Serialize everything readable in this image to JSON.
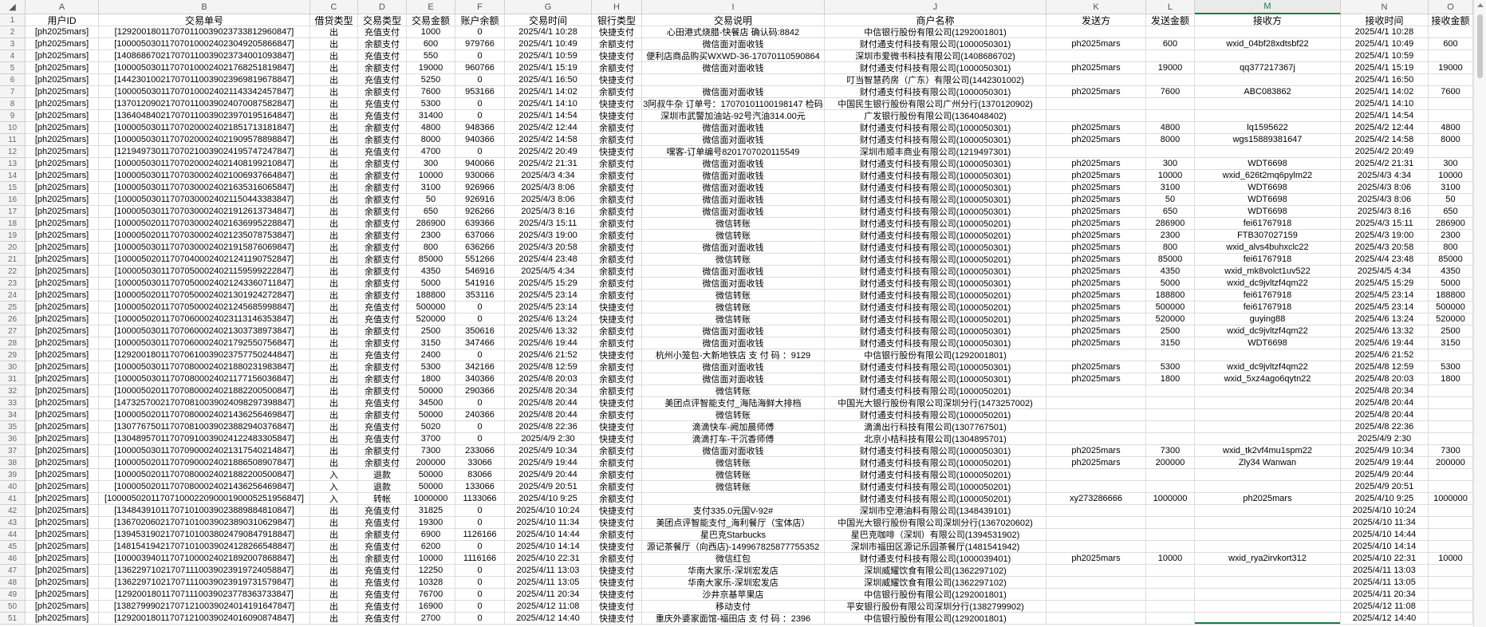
{
  "column_letters": [
    "A",
    "B",
    "C",
    "D",
    "E",
    "F",
    "G",
    "H",
    "I",
    "J",
    "K",
    "L",
    "M",
    "N",
    "O"
  ],
  "selected_column": "M",
  "accent_color": "#1e7a45",
  "header": [
    "用户ID",
    "交易单号",
    "借贷类型",
    "交易类型",
    "交易金额",
    "账户余额",
    "交易时间",
    "银行类型",
    "交易说明",
    "商户名称",
    "发送方",
    "发送金额",
    "接收方",
    "接收时间",
    "接收金额"
  ],
  "rows": [
    [
      "[ph2025mars]",
      "[129200180117070110039023733812960847]",
      "出",
      "充值支付",
      "1000",
      "0",
      "2025/4/1 10:28",
      "快捷支付",
      "心田港式烧腊-快餐店 确认码:8842",
      "中信银行股份有限公司(1292001801)",
      "",
      "",
      "",
      "2025/4/1 10:28",
      ""
    ],
    [
      "[ph2025mars]",
      "[100005030117070100024023049205866847]",
      "出",
      "余额支付",
      "600",
      "979766",
      "2025/4/1 10:49",
      "余额支付",
      "微信面对面收钱",
      "财付通支付科技有限公司(1000050301)",
      "ph2025mars",
      "600",
      "wxid_04bf28xdtsbf22",
      "2025/4/1 10:49",
      "600"
    ],
    [
      "[ph2025mars]",
      "[140868670217070110039023734001093847]",
      "出",
      "充值支付",
      "550",
      "0",
      "2025/4/1 10:59",
      "快捷支付",
      "便利店商品购买WXWD-36-17070110590864",
      "深圳市爱微书科技有限公司(1408686702)",
      "",
      "",
      "",
      "2025/4/1 10:59",
      ""
    ],
    [
      "[ph2025mars]",
      "[100005030117070100024021768251819847]",
      "出",
      "余额支付",
      "19000",
      "960766",
      "2025/4/1 15:19",
      "余额支付",
      "微信面对面收钱",
      "财付通支付科技有限公司(1000050301)",
      "ph2025mars",
      "19000",
      "qq377217367j",
      "2025/4/1 15:19",
      "19000"
    ],
    [
      "[ph2025mars]",
      "[144230100217070110039023969819678847]",
      "出",
      "充值支付",
      "5250",
      "0",
      "2025/4/1 16:50",
      "快捷支付",
      "",
      "叮当智慧药房（广东）有限公司(1442301002)",
      "",
      "",
      "",
      "2025/4/1 16:50",
      ""
    ],
    [
      "[ph2025mars]",
      "[100005030117070100024021143342457847]",
      "出",
      "余额支付",
      "7600",
      "953166",
      "2025/4/1 14:02",
      "余额支付",
      "微信面对面收钱",
      "财付通支付科技有限公司(1000050301)",
      "ph2025mars",
      "7600",
      "ABC083862",
      "2025/4/1 14:02",
      "7600"
    ],
    [
      "[ph2025mars]",
      "[137012090217070110039024070087582847]",
      "出",
      "充值支付",
      "5300",
      "0",
      "2025/4/1 14:10",
      "快捷支付",
      "3阿叔牛杂 订单号：17070101100198147 检码",
      "中国民生银行股份有限公司广州分行(1370120902)",
      "",
      "",
      "",
      "2025/4/1 14:10",
      ""
    ],
    [
      "[ph2025mars]",
      "[136404840217070110039023970195164847]",
      "出",
      "充值支付",
      "31400",
      "0",
      "2025/4/1 14:54",
      "快捷支付",
      "深圳市武警加油站-92号汽油314.00元",
      "广发银行股份有限公司(1364048402)",
      "",
      "",
      "",
      "2025/4/1 14:54",
      ""
    ],
    [
      "[ph2025mars]",
      "[100005030117070200024021851713181847]",
      "出",
      "余额支付",
      "4800",
      "948366",
      "2025/4/2 12:44",
      "余额支付",
      "微信面对面收钱",
      "财付通支付科技有限公司(1000050301)",
      "ph2025mars",
      "4800",
      "lq1595622",
      "2025/4/2 12:44",
      "4800"
    ],
    [
      "[ph2025mars]",
      "[100005030117070200024021909578898847]",
      "出",
      "余额支付",
      "8000",
      "940366",
      "2025/4/2 14:58",
      "余额支付",
      "微信面对面收钱",
      "财付通支付科技有限公司(1000050301)",
      "ph2025mars",
      "8000",
      "wgs15889381647",
      "2025/4/2 14:58",
      "8000"
    ],
    [
      "[ph2025mars]",
      "[121949730117070210039024195747247847]",
      "出",
      "充值支付",
      "4700",
      "0",
      "2025/4/2 20:49",
      "快捷支付",
      "嘿客-订单编号8201707020115549",
      "深圳市顺丰商业有限公司(1219497301)",
      "",
      "",
      "",
      "2025/4/2 20:49",
      ""
    ],
    [
      "[ph2025mars]",
      "[100005030117070200024021408199210847]",
      "出",
      "余额支付",
      "300",
      "940066",
      "2025/4/2 21:31",
      "余额支付",
      "微信面对面收钱",
      "财付通支付科技有限公司(1000050301)",
      "ph2025mars",
      "300",
      "WDT6698",
      "2025/4/2 21:31",
      "300"
    ],
    [
      "[ph2025mars]",
      "[100005030117070300024021006937664847]",
      "出",
      "余额支付",
      "10000",
      "930066",
      "2025/4/3 4:34",
      "余额支付",
      "微信面对面收钱",
      "财付通支付科技有限公司(1000050301)",
      "ph2025mars",
      "10000",
      "wxid_626t2mq6pylm22",
      "2025/4/3 4:34",
      "10000"
    ],
    [
      "[ph2025mars]",
      "[100005030117070300024021635316065847]",
      "出",
      "余额支付",
      "3100",
      "926966",
      "2025/4/3 8:06",
      "余额支付",
      "微信面对面收钱",
      "财付通支付科技有限公司(1000050301)",
      "ph2025mars",
      "3100",
      "WDT6698",
      "2025/4/3 8:06",
      "3100"
    ],
    [
      "[ph2025mars]",
      "[100005030117070300024021150443383847]",
      "出",
      "余额支付",
      "50",
      "926916",
      "2025/4/3 8:06",
      "余额支付",
      "微信面对面收钱",
      "财付通支付科技有限公司(1000050301)",
      "ph2025mars",
      "50",
      "WDT6698",
      "2025/4/3 8:06",
      "50"
    ],
    [
      "[ph2025mars]",
      "[100005030117070300024021912613734847]",
      "出",
      "余额支付",
      "650",
      "926266",
      "2025/4/3 8:16",
      "余额支付",
      "微信面对面收钱",
      "财付通支付科技有限公司(1000050301)",
      "ph2025mars",
      "650",
      "WDT6698",
      "2025/4/3 8:16",
      "650"
    ],
    [
      "[ph2025mars]",
      "[100005020117070300024021636995228847]",
      "出",
      "余额支付",
      "286900",
      "639366",
      "2025/4/3 15:11",
      "余额支付",
      "微信转账",
      "财付通支付科技有限公司(1000050201)",
      "ph2025mars",
      "286900",
      "fei61767918",
      "2025/4/3 15:11",
      "286900"
    ],
    [
      "[ph2025mars]",
      "[100005020117070300024021235078753847]",
      "出",
      "余额支付",
      "2300",
      "637066",
      "2025/4/3 19:00",
      "余额支付",
      "微信转账",
      "财付通支付科技有限公司(1000050201)",
      "ph2025mars",
      "2300",
      "FTB307027159",
      "2025/4/3 19:00",
      "2300"
    ],
    [
      "[ph2025mars]",
      "[100005030117070300024021915876069847]",
      "出",
      "余额支付",
      "800",
      "636266",
      "2025/4/3 20:58",
      "余额支付",
      "微信面对面收钱",
      "财付通支付科技有限公司(1000050301)",
      "ph2025mars",
      "800",
      "wxid_alvs4buhxclc22",
      "2025/4/3 20:58",
      "800"
    ],
    [
      "[ph2025mars]",
      "[100005020117070400024021241190752847]",
      "出",
      "余额支付",
      "85000",
      "551266",
      "2025/4/4 23:48",
      "余额支付",
      "微信转账",
      "财付通支付科技有限公司(1000050201)",
      "ph2025mars",
      "85000",
      "fei61767918",
      "2025/4/4 23:48",
      "85000"
    ],
    [
      "[ph2025mars]",
      "[100005030117070500024021159599222847]",
      "出",
      "余额支付",
      "4350",
      "546916",
      "2025/4/5 4:34",
      "余额支付",
      "微信面对面收钱",
      "财付通支付科技有限公司(1000050301)",
      "ph2025mars",
      "4350",
      "wxid_mk8volct1uv522",
      "2025/4/5 4:34",
      "4350"
    ],
    [
      "[ph2025mars]",
      "[100005030117070500024021243360711847]",
      "出",
      "余额支付",
      "5000",
      "541916",
      "2025/4/5 15:29",
      "余额支付",
      "微信面对面收钱",
      "财付通支付科技有限公司(1000050301)",
      "ph2025mars",
      "5000",
      "wxid_dc9jvltzf4qm22",
      "2025/4/5 15:29",
      "5000"
    ],
    [
      "[ph2025mars]",
      "[100005020117070500024021301924272847]",
      "出",
      "余额支付",
      "188800",
      "353116",
      "2025/4/5 23:14",
      "余额支付",
      "微信转账",
      "财付通支付科技有限公司(1000050201)",
      "ph2025mars",
      "188800",
      "fei61767918",
      "2025/4/5 23:14",
      "188800"
    ],
    [
      "[ph2025mars]",
      "[100005020117070500024021245685998847]",
      "出",
      "充值支付",
      "500000",
      "0",
      "2025/4/5 23:14",
      "快捷支付",
      "微信转账",
      "财付通支付科技有限公司(1000050201)",
      "ph2025mars",
      "500000",
      "fei61767918",
      "2025/4/5 23:14",
      "500000"
    ],
    [
      "[ph2025mars]",
      "[100005020117070600024023113146353847]",
      "出",
      "充值支付",
      "520000",
      "0",
      "2025/4/6 13:24",
      "快捷支付",
      "微信转账",
      "财付通支付科技有限公司(1000050201)",
      "ph2025mars",
      "520000",
      "guying88",
      "2025/4/6 13:24",
      "520000"
    ],
    [
      "[ph2025mars]",
      "[100005030117070600024021303738973847]",
      "出",
      "余额支付",
      "2500",
      "350616",
      "2025/4/6 13:32",
      "余额支付",
      "微信面对面收钱",
      "财付通支付科技有限公司(1000050301)",
      "ph2025mars",
      "2500",
      "wxid_dc9jvltzf4qm22",
      "2025/4/6 13:32",
      "2500"
    ],
    [
      "[ph2025mars]",
      "[100005030117070600024021792550756847]",
      "出",
      "余额支付",
      "3150",
      "347466",
      "2025/4/6 19:44",
      "余额支付",
      "微信面对面收钱",
      "财付通支付科技有限公司(1000050301)",
      "ph2025mars",
      "3150",
      "WDT6698",
      "2025/4/6 19:44",
      "3150"
    ],
    [
      "[ph2025mars]",
      "[129200180117070610039023757750244847]",
      "出",
      "充值支付",
      "2400",
      "0",
      "2025/4/6 21:52",
      "快捷支付",
      "杭州小笼包-大新地铁店 支 付 码 ：9129",
      "中信银行股份有限公司(1292001801)",
      "",
      "",
      "",
      "2025/4/6 21:52",
      ""
    ],
    [
      "[ph2025mars]",
      "[100005030117070800024021880231983847]",
      "出",
      "余额支付",
      "5300",
      "342166",
      "2025/4/8 12:59",
      "余额支付",
      "微信面对面收钱",
      "财付通支付科技有限公司(1000050301)",
      "ph2025mars",
      "5300",
      "wxid_dc9jvltzf4qm22",
      "2025/4/8 12:59",
      "5300"
    ],
    [
      "[ph2025mars]",
      "[100005030117070800024021177156036847]",
      "出",
      "余额支付",
      "1800",
      "340366",
      "2025/4/8 20:03",
      "余额支付",
      "微信面对面收钱",
      "财付通支付科技有限公司(1000050301)",
      "ph2025mars",
      "1800",
      "wxid_5xz4ago6qytn22",
      "2025/4/8 20:03",
      "1800"
    ],
    [
      "[ph2025mars]",
      "[100005020117070800024021882200500847]",
      "出",
      "余额支付",
      "50000",
      "290366",
      "2025/4/8 20:34",
      "余额支付",
      "微信转账",
      "财付通支付科技有限公司(1000050201)",
      "",
      "",
      "",
      "2025/4/8 20:34",
      ""
    ],
    [
      "[ph2025mars]",
      "[147325700217070810039024098297398847]",
      "出",
      "充值支付",
      "34500",
      "0",
      "2025/4/8 20:44",
      "快捷支付",
      "美团点评智能支付_海陆海鲜大排档",
      "中国光大银行股份有限公司深圳分行(1473257002)",
      "",
      "",
      "",
      "2025/4/8 20:44",
      ""
    ],
    [
      "[ph2025mars]",
      "[100005020117070800024021436256469847]",
      "出",
      "余额支付",
      "50000",
      "240366",
      "2025/4/8 20:44",
      "余额支付",
      "微信转账",
      "财付通支付科技有限公司(1000050201)",
      "",
      "",
      "",
      "2025/4/8 20:44",
      ""
    ],
    [
      "[ph2025mars]",
      "[130776750117070810039023882940376847]",
      "出",
      "充值支付",
      "5020",
      "0",
      "2025/4/8 22:36",
      "快捷支付",
      "滴滴快车-阙加晨师傅",
      "滴滴出行科技有限公司(1307767501)",
      "",
      "",
      "",
      "2025/4/8 22:36",
      ""
    ],
    [
      "[ph2025mars]",
      "[130489570117070910039024122483305847]",
      "出",
      "充值支付",
      "3700",
      "0",
      "2025/4/9 2:30",
      "快捷支付",
      "滴滴打车-干沉香师傅",
      "北京小桔科技有限公司(1304895701)",
      "",
      "",
      "",
      "2025/4/9 2:30",
      ""
    ],
    [
      "[ph2025mars]",
      "[100005030117070900024021317540214847]",
      "出",
      "余额支付",
      "7300",
      "233066",
      "2025/4/9 10:34",
      "余额支付",
      "微信面对面收钱",
      "财付通支付科技有限公司(1000050301)",
      "ph2025mars",
      "7300",
      "wxid_tk2vf4mu1spm22",
      "2025/4/9 10:34",
      "7300"
    ],
    [
      "[ph2025mars]",
      "[100005020117070900024021886508907847]",
      "出",
      "余额支付",
      "200000",
      "33066",
      "2025/4/9 19:44",
      "余额支付",
      "微信转账",
      "财付通支付科技有限公司(1000050201)",
      "ph2025mars",
      "200000",
      "Zly34 Wanwan",
      "2025/4/9 19:44",
      "200000"
    ],
    [
      "[ph2025mars]",
      "[100005020117070800024021882200500847]",
      "入",
      "退款",
      "50000",
      "83066",
      "2025/4/9 20:44",
      "余额支付",
      "微信转账",
      "财付通支付科技有限公司(1000050201)",
      "",
      "",
      "",
      "2025/4/9 20:44",
      ""
    ],
    [
      "[ph2025mars]",
      "[100005020117070800024021436256469847]",
      "入",
      "退款",
      "50000",
      "133066",
      "2025/4/9 20:51",
      "余额支付",
      "微信转账",
      "财付通支付科技有限公司(1000050201)",
      "",
      "",
      "",
      "2025/4/9 20:51",
      ""
    ],
    [
      "[ph2025mars]",
      "[1000050201170710002209000190005251956847]",
      "入",
      "转帐",
      "1000000",
      "1133066",
      "2025/4/10 9:25",
      "余额支付",
      "",
      "财付通支付科技有限公司(1000050201)",
      "xy273286666",
      "1000000",
      "ph2025mars",
      "2025/4/10 9:25",
      "1000000"
    ],
    [
      "[ph2025mars]",
      "[134843910117071010039023889884810847]",
      "出",
      "充值支付",
      "31825",
      "0",
      "2025/4/10 10:24",
      "快捷支付",
      "支付335.0元国V-92#",
      "深圳市空港油料有限公司(1348439101)",
      "",
      "",
      "",
      "2025/4/10 10:24",
      ""
    ],
    [
      "[ph2025mars]",
      "[136702060217071010039023890310629847]",
      "出",
      "充值支付",
      "19300",
      "0",
      "2025/4/10 11:34",
      "快捷支付",
      "美团点评智能支付_海利餐厅（宝体店）",
      "中国光大银行股份有限公司深圳分行(1367020602)",
      "",
      "",
      "",
      "2025/4/10 11:34",
      ""
    ],
    [
      "[ph2025mars]",
      "[139453190217071010038024790847918847]",
      "出",
      "余额支付",
      "6900",
      "1126166",
      "2025/4/10 14:44",
      "余额支付",
      "星巴克Starbucks",
      "星巴克咖啡（深圳）有限公司(1394531902)",
      "",
      "",
      "",
      "2025/4/10 14:44",
      ""
    ],
    [
      "[ph2025mars]",
      "[148154194217071010039024128266548847]",
      "出",
      "充值支付",
      "6200",
      "0",
      "2025/4/10 14:14",
      "快捷支付",
      "源记茶餐厅（向西店)-149967825877755352",
      "深圳市福田区源记乐园茶餐厅(1481541942)",
      "",
      "",
      "",
      "2025/4/10 14:14",
      ""
    ],
    [
      "[ph2025mars]",
      "[100003940117071000024021892007868847]",
      "出",
      "余额支付",
      "10000",
      "1116166",
      "2025/4/10 22:31",
      "余额支付",
      "微信红包",
      "财付通支付科技有限公司(1000039401)",
      "ph2025mars",
      "10000",
      "wxid_rya2irvkort312",
      "2025/4/10 22:31",
      "10000"
    ],
    [
      "[ph2025mars]",
      "[136229710217071110039023919724058847]",
      "出",
      "充值支付",
      "12250",
      "0",
      "2025/4/11 13:03",
      "快捷支付",
      "华南大家乐-深圳宏发店",
      "深圳威耀饮食有限公司(1362297102)",
      "",
      "",
      "",
      "2025/4/11 13:03",
      ""
    ],
    [
      "[ph2025mars]",
      "[136229710217071110039023919731579847]",
      "出",
      "充值支付",
      "10328",
      "0",
      "2025/4/11 13:05",
      "快捷支付",
      "华南大家乐-深圳宏发店",
      "深圳威耀饮食有限公司(1362297102)",
      "",
      "",
      "",
      "2025/4/11 13:05",
      ""
    ],
    [
      "[ph2025mars]",
      "[129200180117071110039023778363733847]",
      "出",
      "充值支付",
      "76700",
      "0",
      "2025/4/11 20:34",
      "快捷支付",
      "沙井京基苹果店",
      "中信银行股份有限公司(1292001801)",
      "",
      "",
      "",
      "2025/4/11 20:34",
      ""
    ],
    [
      "[ph2025mars]",
      "[138279990217071210039024014191647847]",
      "出",
      "充值支付",
      "16900",
      "0",
      "2025/4/12 11:08",
      "快捷支付",
      "移动支付",
      "平安银行股份有限公司深圳分行(1382799902)",
      "",
      "",
      "",
      "2025/4/12 11:08",
      ""
    ],
    [
      "[ph2025mars]",
      "[129200180117071210039024016090874847]",
      "出",
      "充值支付",
      "2700",
      "0",
      "2025/4/12 14:40",
      "快捷支付",
      "重庆外婆家面馆-福田店 支 付 码 ：2396",
      "中信银行股份有限公司(1292001801)",
      "",
      "",
      "",
      "2025/4/12 14:40",
      ""
    ]
  ]
}
